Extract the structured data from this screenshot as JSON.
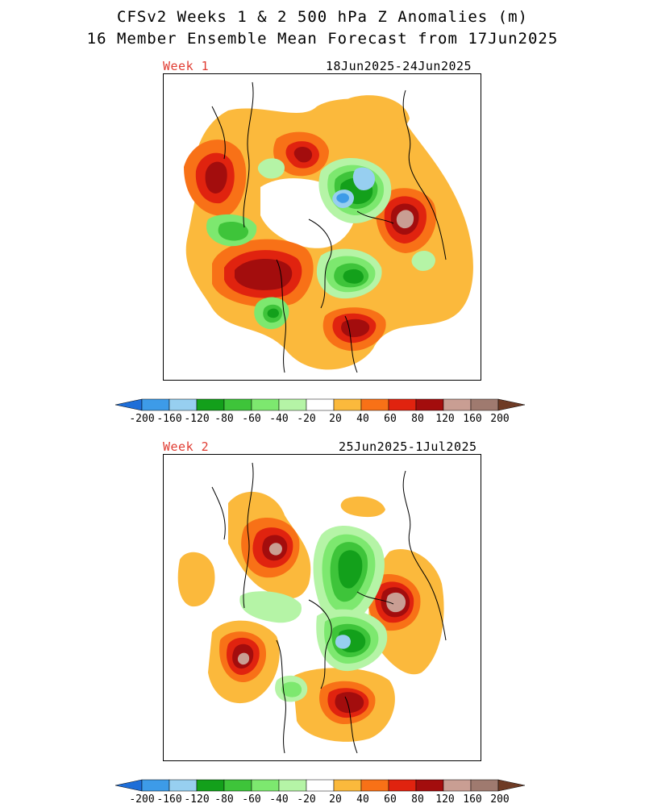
{
  "title": {
    "line1": "CFSv2 Weeks 1 & 2 500 hPa Z Anomalies (m)",
    "line2": "16 Member Ensemble Mean Forecast from 17Jun2025"
  },
  "panels": [
    {
      "week_label": "Week 1",
      "date_range": "18Jun2025-24Jun2025"
    },
    {
      "week_label": "Week 2",
      "date_range": "25Jun2025-1Jul2025"
    }
  ],
  "colorbar": {
    "labels": [
      "-200",
      "-160",
      "-120",
      "-80",
      "-60",
      "-40",
      "-20",
      "20",
      "40",
      "60",
      "80",
      "120",
      "160",
      "200"
    ],
    "colors": [
      "#1e6ed8",
      "#3d9be8",
      "#97cff0",
      "#13a01b",
      "#3ec43a",
      "#7de86f",
      "#b5f4a6",
      "#ffffff",
      "#fbb93c",
      "#f87117",
      "#e0230f",
      "#a30d0d",
      "#c99e93",
      "#9f7a6f",
      "#6e3b25"
    ]
  },
  "colors": {
    "week_label": "#e03c32"
  }
}
